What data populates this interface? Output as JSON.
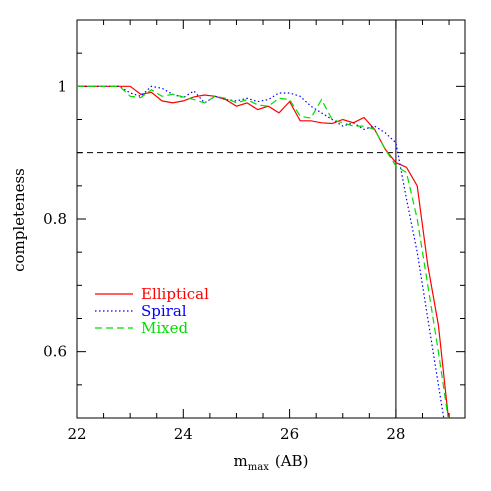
{
  "chart_data": {
    "type": "line",
    "xlabel_main": "m",
    "xlabel_sub": "max",
    "xlabel_unit": "(AB)",
    "ylabel": "completeness",
    "xlim": [
      22,
      29.3
    ],
    "ylim": [
      0.5,
      1.1
    ],
    "xticks": [
      22,
      24,
      26,
      28
    ],
    "yticks": [
      0.6,
      0.8,
      1
    ],
    "xtick_labels": [
      "22",
      "24",
      "26",
      "28"
    ],
    "ytick_labels": [
      "0.6",
      "0.8",
      "1"
    ],
    "hline": 0.9,
    "vline": 28,
    "legend_position": "lower-left",
    "series": [
      {
        "name": "Elliptical",
        "color": "#ff0000",
        "dash": "solid",
        "x": [
          22,
          22.4,
          22.8,
          23.0,
          23.2,
          23.4,
          23.6,
          23.8,
          24.0,
          24.2,
          24.4,
          24.6,
          24.8,
          25.0,
          25.2,
          25.4,
          25.6,
          25.8,
          26.0,
          26.2,
          26.4,
          26.6,
          26.8,
          27.0,
          27.2,
          27.4,
          27.6,
          27.8,
          28.0,
          28.2,
          28.4,
          28.6,
          28.8,
          29.0
        ],
        "y": [
          1.0,
          1.0,
          1.0,
          1.0,
          0.988,
          0.991,
          0.978,
          0.975,
          0.978,
          0.984,
          0.987,
          0.985,
          0.98,
          0.97,
          0.975,
          0.965,
          0.97,
          0.96,
          0.977,
          0.948,
          0.948,
          0.945,
          0.944,
          0.95,
          0.945,
          0.953,
          0.935,
          0.905,
          0.885,
          0.878,
          0.85,
          0.73,
          0.64,
          0.49
        ]
      },
      {
        "name": "Spiral",
        "color": "#0000ff",
        "dash": "dotted",
        "x": [
          22,
          22.4,
          22.8,
          23.0,
          23.2,
          23.4,
          23.6,
          23.8,
          24.0,
          24.2,
          24.4,
          24.6,
          24.8,
          25.0,
          25.2,
          25.4,
          25.6,
          25.8,
          26.0,
          26.2,
          26.4,
          26.6,
          26.8,
          27.0,
          27.2,
          27.4,
          27.6,
          27.8,
          28.0,
          28.2,
          28.4,
          28.6,
          28.8,
          29.0
        ],
        "y": [
          1.0,
          1.0,
          1.0,
          0.99,
          0.985,
          1.0,
          0.997,
          0.988,
          0.983,
          0.993,
          0.975,
          0.985,
          0.98,
          0.978,
          0.982,
          0.977,
          0.98,
          0.99,
          0.99,
          0.985,
          0.97,
          0.96,
          0.95,
          0.94,
          0.945,
          0.935,
          0.94,
          0.93,
          0.915,
          0.83,
          0.75,
          0.65,
          0.55,
          0.45
        ]
      },
      {
        "name": "Mixed",
        "color": "#00dd00",
        "dash": "dashed",
        "x": [
          22,
          22.4,
          22.8,
          23.0,
          23.2,
          23.4,
          23.6,
          23.8,
          24.0,
          24.2,
          24.4,
          24.6,
          24.8,
          25.0,
          25.2,
          25.4,
          25.6,
          25.8,
          26.0,
          26.2,
          26.4,
          26.6,
          26.8,
          27.0,
          27.2,
          27.4,
          27.6,
          27.8,
          28.0,
          28.2,
          28.4,
          28.6,
          28.8,
          29.0
        ],
        "y": [
          1.0,
          1.0,
          1.0,
          0.985,
          0.983,
          0.995,
          0.985,
          0.988,
          0.984,
          0.98,
          0.975,
          0.985,
          0.982,
          0.975,
          0.98,
          0.972,
          0.97,
          0.982,
          0.98,
          0.955,
          0.952,
          0.98,
          0.95,
          0.945,
          0.94,
          0.94,
          0.935,
          0.905,
          0.88,
          0.87,
          0.8,
          0.7,
          0.6,
          0.49
        ]
      }
    ]
  }
}
